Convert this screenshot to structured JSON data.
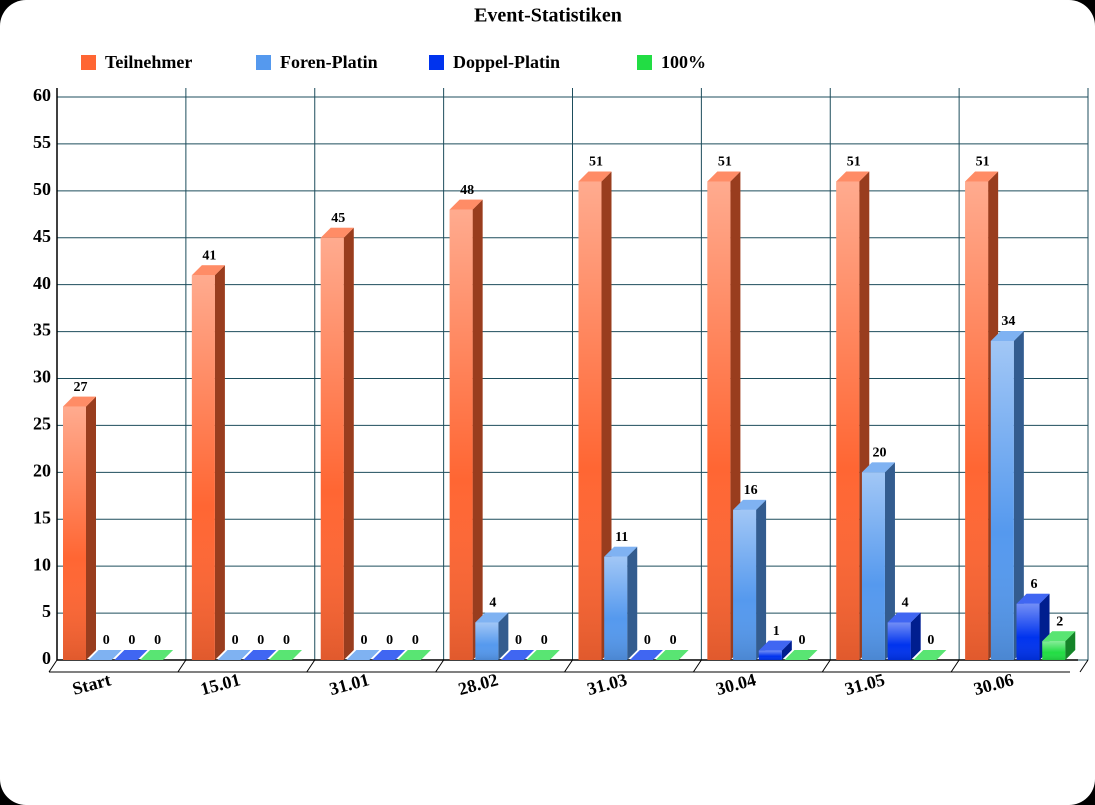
{
  "chart_data": {
    "type": "bar",
    "title": "Event-Statistiken",
    "categories": [
      "Start",
      "15.01",
      "31.01",
      "28.02",
      "31.03",
      "30.04",
      "31.05",
      "30.06"
    ],
    "series": [
      {
        "name": "Teilnehmer",
        "color": "#ff6633",
        "values": [
          27,
          41,
          45,
          48,
          51,
          51,
          51,
          51
        ]
      },
      {
        "name": "Foren-Platin",
        "color": "#5599ee",
        "values": [
          0,
          0,
          0,
          4,
          11,
          16,
          20,
          34
        ]
      },
      {
        "name": "Doppel-Platin",
        "color": "#0033ee",
        "values": [
          0,
          0,
          0,
          0,
          0,
          1,
          4,
          6
        ]
      },
      {
        "name": "100%",
        "color": "#22dd44",
        "values": [
          0,
          0,
          0,
          0,
          0,
          0,
          0,
          2
        ]
      }
    ],
    "ylim": [
      0,
      60
    ],
    "yticks": [
      0,
      5,
      10,
      15,
      20,
      25,
      30,
      35,
      40,
      45,
      50,
      55,
      60
    ],
    "grid": true
  }
}
